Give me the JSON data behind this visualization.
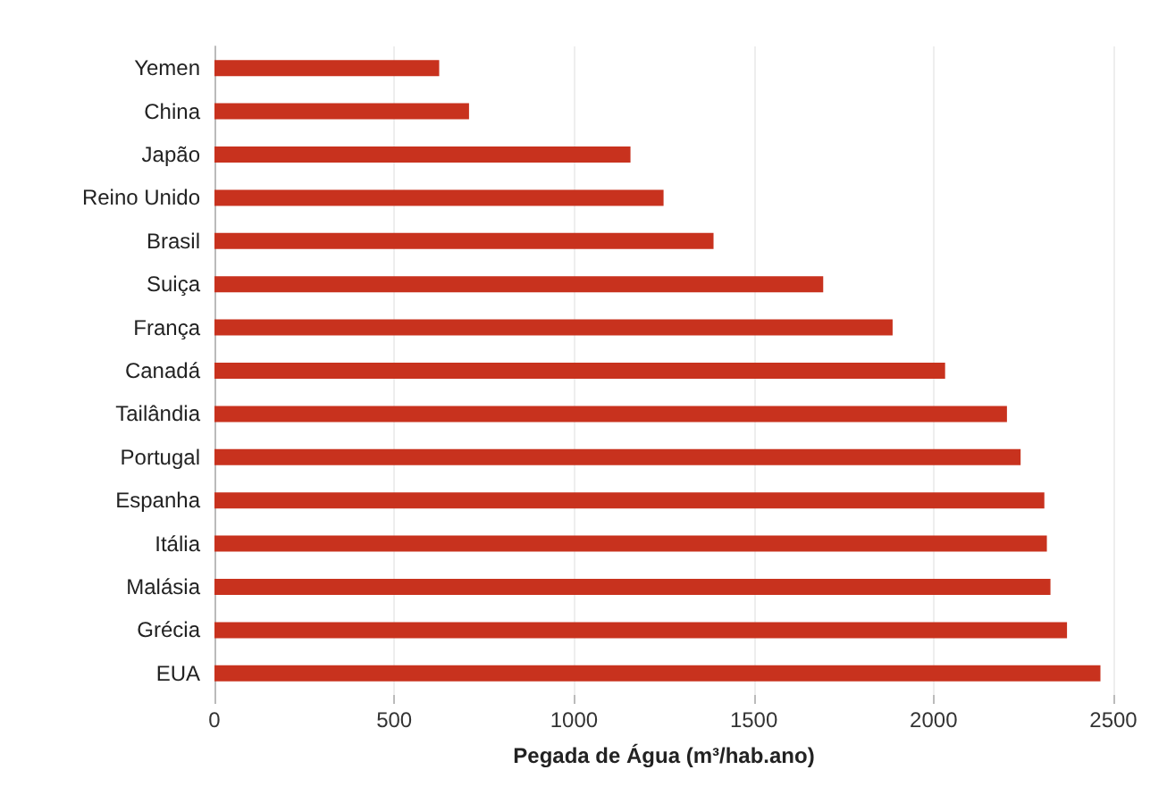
{
  "chart_data": {
    "type": "bar",
    "orientation": "horizontal",
    "categories": [
      "Yemen",
      "China",
      "Japão",
      "Reino Unido",
      "Brasil",
      "Suiça",
      "França",
      "Canadá",
      "Tailândia",
      "Portugal",
      "Espanha",
      "Itália",
      "Malásia",
      "Grécia",
      "EUA"
    ],
    "values": [
      625,
      708,
      1157,
      1249,
      1388,
      1693,
      1886,
      2032,
      2204,
      2242,
      2308,
      2315,
      2325,
      2371,
      2464
    ],
    "color": "#c8321e",
    "xlabel": "Pegada de Água (m³/hab.ano)",
    "xlim": [
      0,
      2500
    ],
    "xticks": [
      0,
      500,
      1000,
      1500,
      2000,
      2500
    ],
    "grid": "x"
  }
}
